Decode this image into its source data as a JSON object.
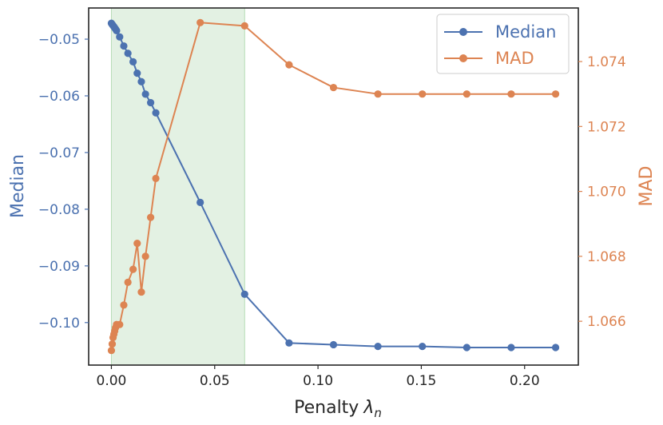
{
  "chart_data": {
    "type": "line",
    "xlabel": "Penalty",
    "xlabel_symbol": "λ",
    "xlabel_subscript": "n",
    "ylabel_left": "Median",
    "ylabel_right": "MAD",
    "xlim": [
      -0.011,
      0.226
    ],
    "ylim_left": [
      -0.1075,
      -0.0445
    ],
    "ylim_right": [
      1.06465,
      1.07565
    ],
    "x_ticks": [
      0.0,
      0.05,
      0.1,
      0.15,
      0.2
    ],
    "x_tick_labels": [
      "0.00",
      "0.05",
      "0.10",
      "0.15",
      "0.20"
    ],
    "y_left_ticks": [
      -0.05,
      -0.06,
      -0.07,
      -0.08,
      -0.09,
      -0.1
    ],
    "y_left_tick_labels": [
      "−0.05",
      "−0.06",
      "−0.07",
      "−0.08",
      "−0.09",
      "−0.10"
    ],
    "y_right_ticks": [
      1.066,
      1.068,
      1.07,
      1.072,
      1.074
    ],
    "y_right_tick_labels": [
      "1.066",
      "1.068",
      "1.070",
      "1.072",
      "1.074"
    ],
    "shaded_region": {
      "x": [
        0.0,
        0.0645
      ],
      "color": "#e3f1e3"
    },
    "legend_position": "top-right",
    "series": [
      {
        "name": "Median",
        "axis": "left",
        "color": "#4c72b0",
        "x": [
          0.0,
          0.0004,
          0.0008,
          0.0012,
          0.0016,
          0.002,
          0.0025,
          0.004,
          0.006,
          0.008,
          0.0105,
          0.0125,
          0.0145,
          0.0165,
          0.019,
          0.0215,
          0.043,
          0.0645,
          0.086,
          0.1075,
          0.129,
          0.1505,
          0.172,
          0.1935,
          0.215
        ],
        "values": [
          -0.0472,
          -0.0474,
          -0.0476,
          -0.0478,
          -0.048,
          -0.0482,
          -0.0485,
          -0.0496,
          -0.0512,
          -0.0525,
          -0.054,
          -0.056,
          -0.0575,
          -0.0597,
          -0.0612,
          -0.063,
          -0.0788,
          -0.095,
          -0.1036,
          -0.1039,
          -0.1042,
          -0.1042,
          -0.1044,
          -0.1044,
          -0.1044
        ]
      },
      {
        "name": "MAD",
        "axis": "right",
        "color": "#dd8452",
        "x": [
          0.0,
          0.0004,
          0.0008,
          0.0012,
          0.0016,
          0.002,
          0.0025,
          0.004,
          0.006,
          0.008,
          0.0105,
          0.0125,
          0.0145,
          0.0165,
          0.019,
          0.0215,
          0.043,
          0.0645,
          0.086,
          0.1075,
          0.129,
          0.1505,
          0.172,
          0.1935,
          0.215
        ],
        "values": [
          1.0651,
          1.0653,
          1.0655,
          1.0656,
          1.0657,
          1.0658,
          1.0659,
          1.0659,
          1.0665,
          1.0672,
          1.0676,
          1.0684,
          1.0669,
          1.068,
          1.0692,
          1.0704,
          1.0752,
          1.0751,
          1.0739,
          1.0732,
          1.073,
          1.073,
          1.073,
          1.073,
          1.073
        ]
      }
    ]
  }
}
